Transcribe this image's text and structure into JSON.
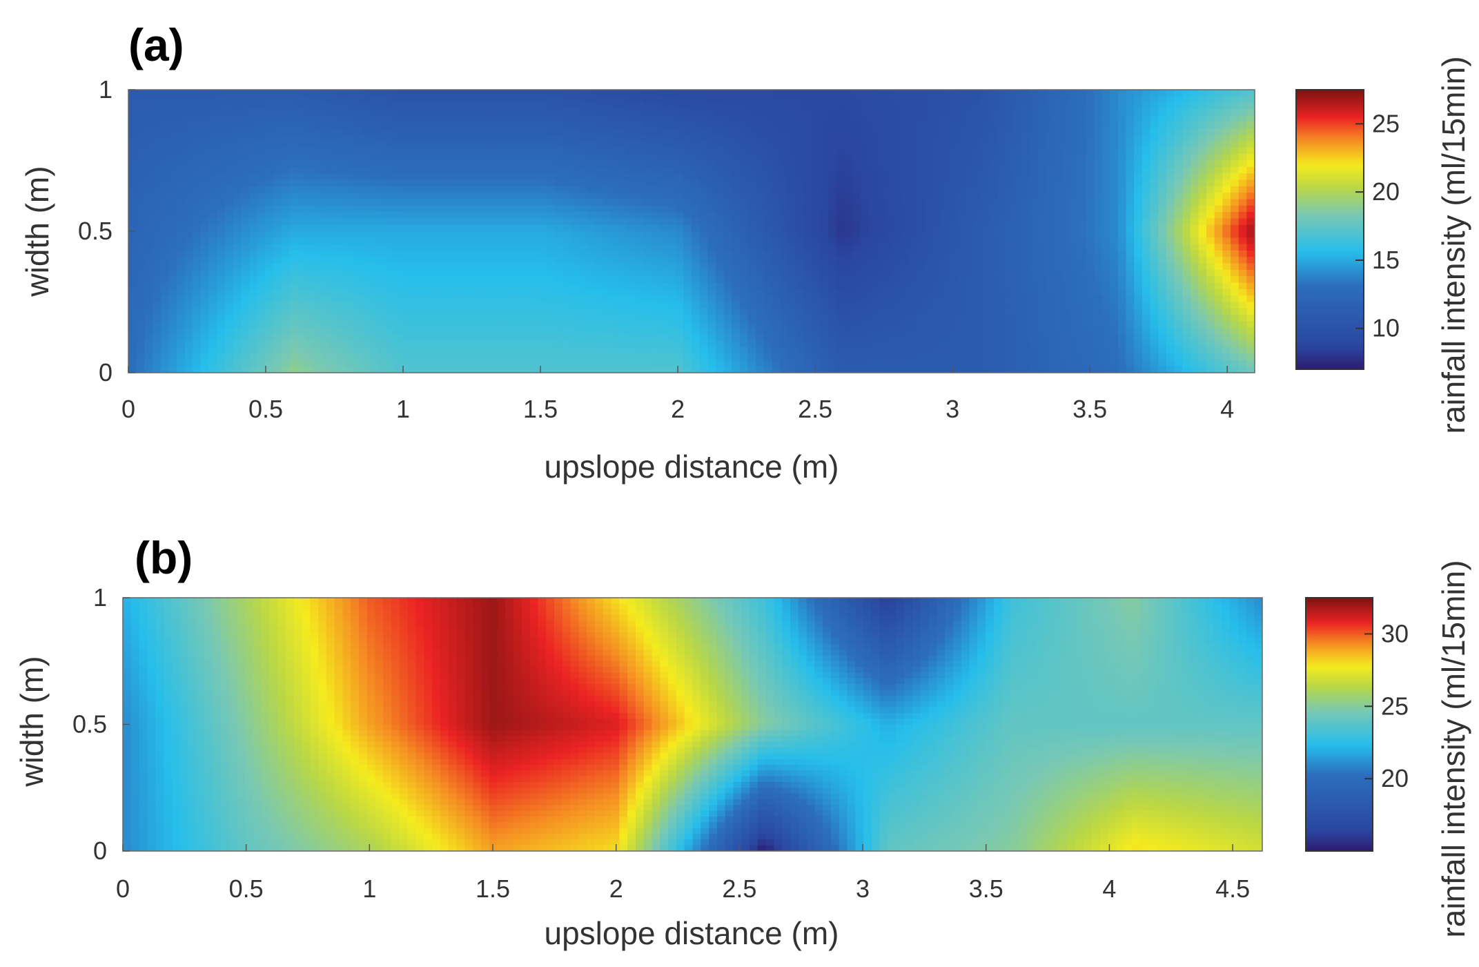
{
  "chart_data": [
    {
      "type": "heatmap",
      "panel_label": "(a)",
      "xlabel": "upslope distance (m)",
      "ylabel": "width (m)",
      "xlim": [
        0,
        4.1
      ],
      "ylim": [
        0,
        1
      ],
      "xticks": [
        "0",
        "0.5",
        "1",
        "1.5",
        "2",
        "2.5",
        "3",
        "3.5",
        "4"
      ],
      "yticks": [
        "0",
        "0.5",
        "1"
      ],
      "x": [
        0,
        0.6,
        1.0,
        1.5,
        2.0,
        2.6,
        3.1,
        3.6,
        4.1
      ],
      "y": [
        0,
        0.5,
        1
      ],
      "z": [
        [
          13,
          19,
          17,
          17,
          17,
          11,
          11,
          13,
          18
        ],
        [
          12,
          15,
          15,
          15,
          14,
          8,
          11,
          14,
          27
        ],
        [
          11,
          11,
          10,
          10,
          9,
          9,
          10,
          14,
          17
        ]
      ],
      "colorbar": {
        "label": "rainfall intensity (ml/15min)",
        "ticks": [
          "10",
          "15",
          "20",
          "25"
        ],
        "range": [
          7,
          27.5
        ]
      }
    },
    {
      "type": "heatmap",
      "panel_label": "(b)",
      "xlabel": "upslope distance (m)",
      "ylabel": "width (m)",
      "xlim": [
        0,
        4.62
      ],
      "ylim": [
        0,
        1
      ],
      "xticks": [
        "0",
        "0.5",
        "1",
        "1.5",
        "2",
        "2.5",
        "3",
        "3.5",
        "4",
        "4.5"
      ],
      "yticks": [
        "0",
        "0.5",
        "1"
      ],
      "x": [
        0,
        0.5,
        1.0,
        1.5,
        2.0,
        2.6,
        3.1,
        3.6,
        4.1,
        4.62
      ],
      "y": [
        0,
        0.5,
        1
      ],
      "z": [
        [
          21,
          24,
          26,
          29,
          28,
          15,
          24,
          25,
          28,
          27
        ],
        [
          21,
          25,
          29,
          32,
          31,
          25,
          22,
          24,
          24,
          24
        ],
        [
          22,
          26,
          30,
          32,
          28,
          23,
          16,
          23,
          25,
          21
        ]
      ],
      "colorbar": {
        "label": "rainfall intensity (ml/15min)",
        "ticks": [
          "20",
          "25",
          "30"
        ],
        "range": [
          15,
          32.5
        ]
      }
    }
  ]
}
